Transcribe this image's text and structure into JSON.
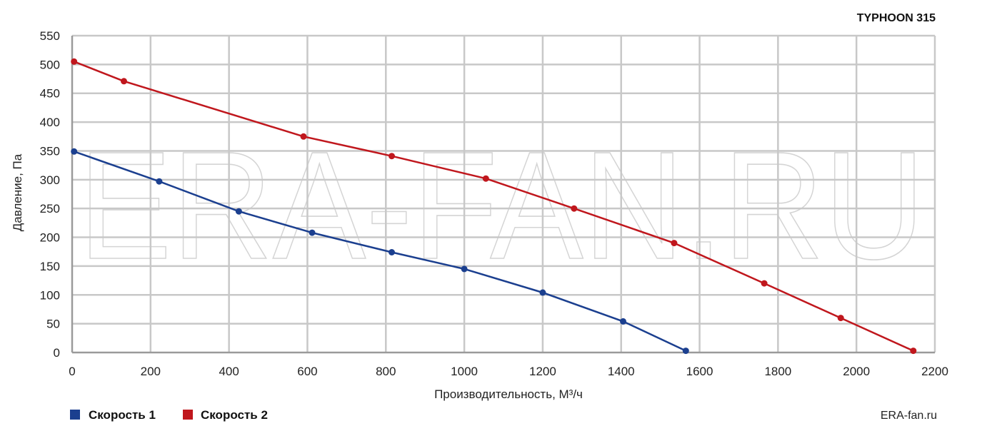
{
  "chart_data": {
    "type": "line",
    "title": "TYPHOON 315",
    "xlabel": "Производительность, М³/ч",
    "ylabel": "Давление, Па",
    "xlim": [
      0,
      2200
    ],
    "ylim": [
      0,
      550
    ],
    "xticks": [
      "0",
      "200",
      "400",
      "600",
      "800",
      "1000",
      "1200",
      "1400",
      "1600",
      "1800",
      "2000",
      "2200"
    ],
    "yticks": [
      "0",
      "50",
      "100",
      "150",
      "200",
      "250",
      "300",
      "350",
      "400",
      "450",
      "500",
      "550"
    ],
    "grid": true,
    "legend_position": "bottom-left",
    "watermark": "ERA-FAN.RU",
    "site_label": "ERA-fan.ru",
    "series": [
      {
        "name": "Скорость 1",
        "color": "#1b3f8f",
        "points": [
          [
            5,
            349
          ],
          [
            222,
            297
          ],
          [
            425,
            245
          ],
          [
            612,
            208
          ],
          [
            815,
            174
          ],
          [
            1000,
            145
          ],
          [
            1200,
            104
          ],
          [
            1405,
            54
          ],
          [
            1565,
            3
          ]
        ]
      },
      {
        "name": "Скорость 2",
        "color": "#c0171d",
        "points": [
          [
            5,
            505
          ],
          [
            132,
            471
          ],
          [
            590,
            375
          ],
          [
            815,
            341
          ],
          [
            1055,
            302
          ],
          [
            1280,
            250
          ],
          [
            1535,
            190
          ],
          [
            1765,
            120
          ],
          [
            1960,
            60
          ],
          [
            2145,
            3
          ]
        ]
      }
    ]
  }
}
